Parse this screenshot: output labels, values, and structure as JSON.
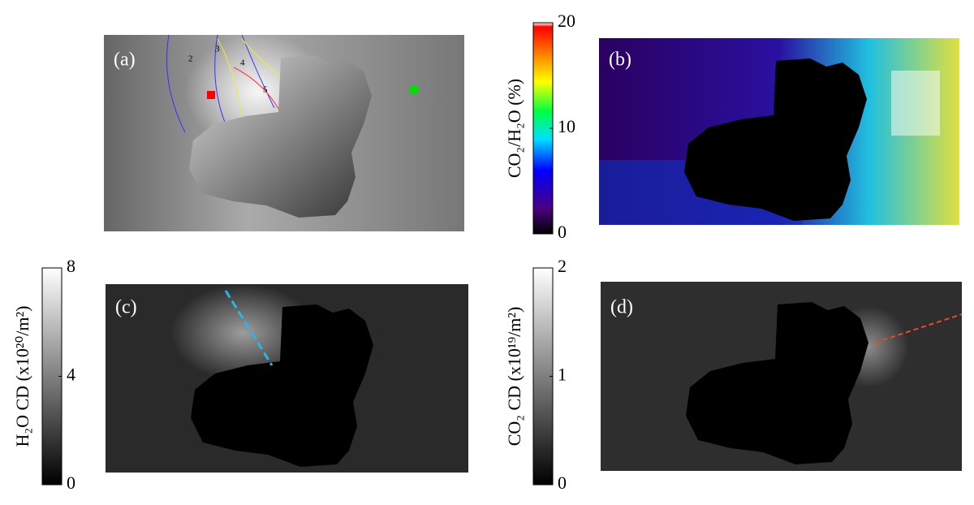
{
  "panels": [
    {
      "label": "(a)"
    },
    {
      "label": "(b)"
    },
    {
      "label": "(c)"
    },
    {
      "label": "(d)"
    }
  ],
  "contour_labels": [
    "2",
    "3",
    "4",
    "5"
  ],
  "colorbars": [
    {
      "label": "CO₂/H₂O (%)",
      "ticks": [
        0,
        10,
        20
      ]
    },
    {
      "label": "H₂O CD (x10²⁰/m²)",
      "ticks": [
        0,
        4,
        8
      ]
    },
    {
      "label": "CO₂ CD (x10¹⁹/m²)",
      "ticks": [
        0,
        1,
        2
      ]
    }
  ]
}
